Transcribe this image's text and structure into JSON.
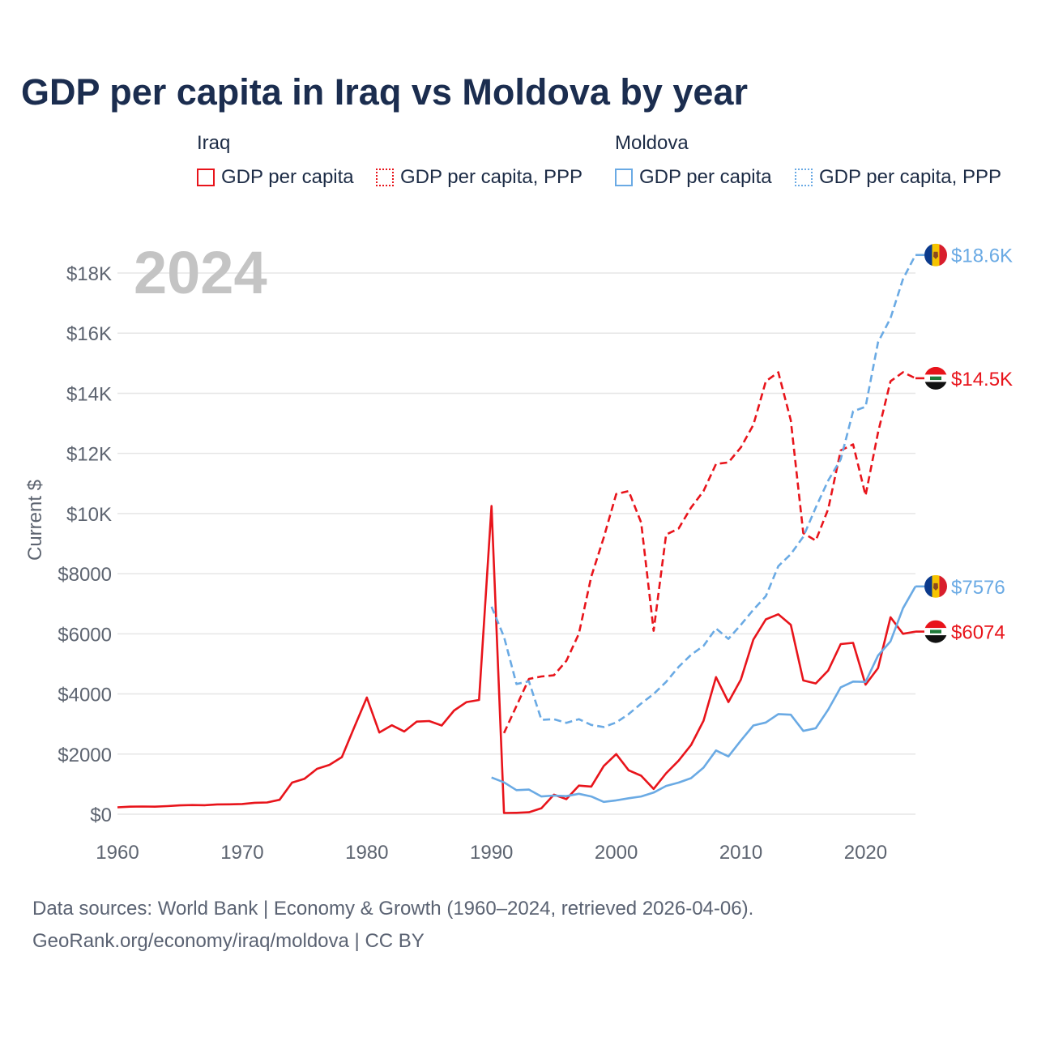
{
  "title": "GDP per capita in Iraq vs Moldova by year",
  "legend": {
    "iraq": {
      "title": "Iraq",
      "gdp": "GDP per capita",
      "ppp": "GDP per capita, PPP"
    },
    "moldova": {
      "title": "Moldova",
      "gdp": "GDP per capita",
      "ppp": "GDP per capita, PPP"
    }
  },
  "year_watermark": "2024",
  "footer": {
    "line1": "Data sources: World Bank | Economy & Growth (1960–2024, retrieved 2026-04-06).",
    "line2": "GeoRank.org/economy/iraq/moldova | CC BY"
  },
  "colors": {
    "iraq": "#e8141b",
    "moldova": "#6aaae4"
  },
  "chart_data": {
    "type": "line",
    "title": "GDP per capita in Iraq vs Moldova by year",
    "xlabel": "",
    "ylabel": "Current $",
    "xlim": [
      1960,
      2024
    ],
    "ylim": [
      0,
      19000
    ],
    "grid": true,
    "x_ticks": [
      1960,
      1970,
      1980,
      1990,
      2000,
      2010,
      2020
    ],
    "y_ticks": [
      0,
      2000,
      4000,
      6000,
      8000,
      10000,
      12000,
      14000,
      16000,
      18000
    ],
    "y_tick_labels": [
      "$0",
      "$2000",
      "$4000",
      "$6000",
      "$8000",
      "$10K",
      "$12K",
      "$14K",
      "$16K",
      "$18K"
    ],
    "series": [
      {
        "name": "Iraq GDP per capita",
        "country": "iraq",
        "style": "solid",
        "end_label": "$6074",
        "points": [
          [
            1960,
            230
          ],
          [
            1961,
            250
          ],
          [
            1962,
            255
          ],
          [
            1963,
            250
          ],
          [
            1964,
            270
          ],
          [
            1965,
            295
          ],
          [
            1966,
            305
          ],
          [
            1967,
            300
          ],
          [
            1968,
            325
          ],
          [
            1969,
            330
          ],
          [
            1970,
            340
          ],
          [
            1971,
            380
          ],
          [
            1972,
            390
          ],
          [
            1973,
            480
          ],
          [
            1974,
            1050
          ],
          [
            1975,
            1180
          ],
          [
            1976,
            1510
          ],
          [
            1977,
            1640
          ],
          [
            1978,
            1900
          ],
          [
            1979,
            2900
          ],
          [
            1980,
            3880
          ],
          [
            1981,
            2720
          ],
          [
            1982,
            2960
          ],
          [
            1983,
            2750
          ],
          [
            1984,
            3080
          ],
          [
            1985,
            3100
          ],
          [
            1986,
            2950
          ],
          [
            1987,
            3450
          ],
          [
            1988,
            3730
          ],
          [
            1989,
            3800
          ],
          [
            1990,
            10250
          ],
          [
            1991,
            40
          ],
          [
            1992,
            45
          ],
          [
            1993,
            65
          ],
          [
            1994,
            200
          ],
          [
            1995,
            650
          ],
          [
            1996,
            500
          ],
          [
            1997,
            950
          ],
          [
            1998,
            920
          ],
          [
            1999,
            1600
          ],
          [
            2000,
            2000
          ],
          [
            2001,
            1460
          ],
          [
            2002,
            1280
          ],
          [
            2003,
            840
          ],
          [
            2004,
            1360
          ],
          [
            2005,
            1780
          ],
          [
            2006,
            2300
          ],
          [
            2007,
            3110
          ],
          [
            2008,
            4560
          ],
          [
            2009,
            3730
          ],
          [
            2010,
            4480
          ],
          [
            2011,
            5810
          ],
          [
            2012,
            6480
          ],
          [
            2013,
            6650
          ],
          [
            2014,
            6300
          ],
          [
            2015,
            4450
          ],
          [
            2016,
            4350
          ],
          [
            2017,
            4780
          ],
          [
            2018,
            5660
          ],
          [
            2019,
            5700
          ],
          [
            2020,
            4310
          ],
          [
            2021,
            4860
          ],
          [
            2022,
            6550
          ],
          [
            2023,
            6000
          ],
          [
            2024,
            6074
          ]
        ]
      },
      {
        "name": "Iraq GDP per capita, PPP",
        "country": "iraq",
        "style": "dashed",
        "end_label": "$14.5K",
        "points": [
          [
            1991,
            2700
          ],
          [
            1992,
            3600
          ],
          [
            1993,
            4500
          ],
          [
            1994,
            4580
          ],
          [
            1995,
            4620
          ],
          [
            1996,
            5100
          ],
          [
            1997,
            6000
          ],
          [
            1998,
            7900
          ],
          [
            1999,
            9200
          ],
          [
            2000,
            10650
          ],
          [
            2001,
            10750
          ],
          [
            2002,
            9700
          ],
          [
            2003,
            6100
          ],
          [
            2004,
            9300
          ],
          [
            2005,
            9500
          ],
          [
            2006,
            10200
          ],
          [
            2007,
            10750
          ],
          [
            2008,
            11650
          ],
          [
            2009,
            11700
          ],
          [
            2010,
            12200
          ],
          [
            2011,
            12950
          ],
          [
            2012,
            14400
          ],
          [
            2013,
            14700
          ],
          [
            2014,
            13100
          ],
          [
            2015,
            9350
          ],
          [
            2016,
            9100
          ],
          [
            2017,
            10150
          ],
          [
            2018,
            12100
          ],
          [
            2019,
            12300
          ],
          [
            2020,
            10600
          ],
          [
            2021,
            12700
          ],
          [
            2022,
            14400
          ],
          [
            2023,
            14700
          ],
          [
            2024,
            14500
          ]
        ]
      },
      {
        "name": "Moldova GDP per capita",
        "country": "moldova",
        "style": "solid",
        "end_label": "$7576",
        "points": [
          [
            1990,
            1220
          ],
          [
            1991,
            1060
          ],
          [
            1992,
            800
          ],
          [
            1993,
            820
          ],
          [
            1994,
            590
          ],
          [
            1995,
            620
          ],
          [
            1996,
            600
          ],
          [
            1997,
            680
          ],
          [
            1998,
            590
          ],
          [
            1999,
            410
          ],
          [
            2000,
            460
          ],
          [
            2001,
            530
          ],
          [
            2002,
            590
          ],
          [
            2003,
            720
          ],
          [
            2004,
            940
          ],
          [
            2005,
            1050
          ],
          [
            2006,
            1200
          ],
          [
            2007,
            1550
          ],
          [
            2008,
            2120
          ],
          [
            2009,
            1920
          ],
          [
            2010,
            2450
          ],
          [
            2011,
            2950
          ],
          [
            2012,
            3050
          ],
          [
            2013,
            3330
          ],
          [
            2014,
            3310
          ],
          [
            2015,
            2770
          ],
          [
            2016,
            2860
          ],
          [
            2017,
            3480
          ],
          [
            2018,
            4220
          ],
          [
            2019,
            4410
          ],
          [
            2020,
            4400
          ],
          [
            2021,
            5280
          ],
          [
            2022,
            5750
          ],
          [
            2023,
            6850
          ],
          [
            2024,
            7576
          ]
        ]
      },
      {
        "name": "Moldova GDP per capita, PPP",
        "country": "moldova",
        "style": "dashed",
        "end_label": "$18.6K",
        "points": [
          [
            1990,
            6900
          ],
          [
            1991,
            5900
          ],
          [
            1992,
            4330
          ],
          [
            1993,
            4420
          ],
          [
            1994,
            3140
          ],
          [
            1995,
            3160
          ],
          [
            1996,
            3040
          ],
          [
            1997,
            3160
          ],
          [
            1998,
            2970
          ],
          [
            1999,
            2900
          ],
          [
            2000,
            3050
          ],
          [
            2001,
            3330
          ],
          [
            2002,
            3680
          ],
          [
            2003,
            4000
          ],
          [
            2004,
            4400
          ],
          [
            2005,
            4900
          ],
          [
            2006,
            5300
          ],
          [
            2007,
            5600
          ],
          [
            2008,
            6180
          ],
          [
            2009,
            5830
          ],
          [
            2010,
            6300
          ],
          [
            2011,
            6800
          ],
          [
            2012,
            7250
          ],
          [
            2013,
            8250
          ],
          [
            2014,
            8650
          ],
          [
            2015,
            9230
          ],
          [
            2016,
            10200
          ],
          [
            2017,
            11100
          ],
          [
            2018,
            11800
          ],
          [
            2019,
            13400
          ],
          [
            2020,
            13550
          ],
          [
            2021,
            15700
          ],
          [
            2022,
            16500
          ],
          [
            2023,
            17800
          ],
          [
            2024,
            18600
          ]
        ]
      }
    ]
  }
}
